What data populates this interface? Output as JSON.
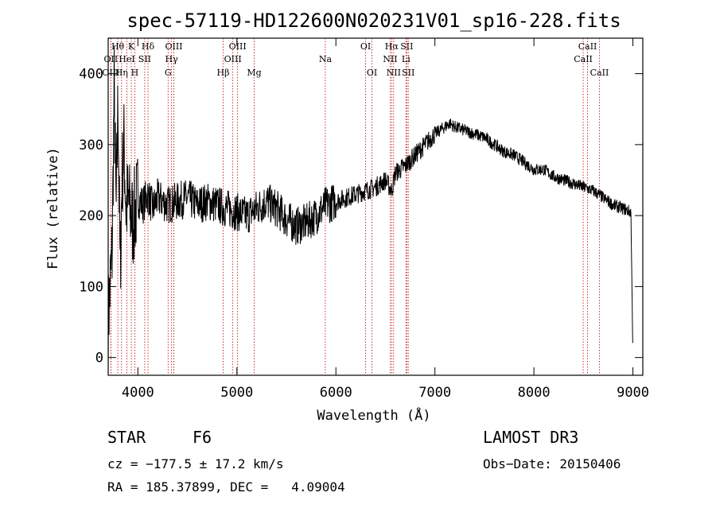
{
  "chart_data": {
    "type": "line",
    "title": "spec-57119-HD122600N020231V01_sp16-228.fits",
    "xlabel": "Wavelength (Å)",
    "ylabel": "Flux (relative)",
    "xlim": [
      3700,
      9100
    ],
    "ylim": [
      -25,
      450
    ],
    "xticks": [
      4000,
      5000,
      6000,
      7000,
      8000,
      9000
    ],
    "yticks": [
      0,
      100,
      200,
      300,
      400
    ],
    "series": [
      {
        "name": "flux",
        "x": [
          3700,
          3740,
          3760,
          3780,
          3800,
          3820,
          3840,
          3860,
          3880,
          3900,
          3950,
          4000,
          4050,
          4100,
          4150,
          4200,
          4300,
          4400,
          4500,
          4600,
          4700,
          4800,
          4900,
          5000,
          5100,
          5200,
          5300,
          5400,
          5500,
          5600,
          5700,
          5800,
          5900,
          6000,
          6100,
          6200,
          6300,
          6400,
          6500,
          6563,
          6600,
          6700,
          6800,
          6900,
          7000,
          7100,
          7150,
          7200,
          7300,
          7400,
          7500,
          7600,
          7700,
          7800,
          7900,
          8000,
          8100,
          8200,
          8300,
          8400,
          8500,
          8600,
          8700,
          8800,
          8900,
          8980,
          9000
        ],
        "y": [
          50,
          150,
          380,
          200,
          370,
          120,
          250,
          300,
          210,
          220,
          190,
          225,
          215,
          230,
          210,
          225,
          215,
          220,
          225,
          215,
          220,
          215,
          210,
          205,
          200,
          210,
          220,
          210,
          195,
          185,
          190,
          200,
          215,
          220,
          225,
          230,
          235,
          240,
          250,
          235,
          260,
          270,
          285,
          300,
          315,
          325,
          330,
          325,
          320,
          315,
          310,
          300,
          290,
          285,
          275,
          265,
          265,
          255,
          250,
          245,
          240,
          235,
          225,
          215,
          210,
          205,
          0
        ]
      }
    ],
    "line_markers": [
      {
        "label": "Hθ",
        "x": 3797,
        "row": 1
      },
      {
        "label": "OII",
        "x": 3727,
        "row": 2
      },
      {
        "label": "OIII",
        "x": 3727,
        "row": 3
      },
      {
        "label": "K",
        "x": 3934,
        "row": 1
      },
      {
        "label": "HeI",
        "x": 3889,
        "row": 2
      },
      {
        "label": "Hη",
        "x": 3835,
        "row": 3
      },
      {
        "label": "Hδ",
        "x": 4102,
        "row": 1
      },
      {
        "label": "SII",
        "x": 4069,
        "row": 2
      },
      {
        "label": "H",
        "x": 3969,
        "row": 3
      },
      {
        "label": "OIII",
        "x": 4363,
        "row": 1
      },
      {
        "label": "Hγ",
        "x": 4340,
        "row": 2
      },
      {
        "label": "G",
        "x": 4305,
        "row": 3
      },
      {
        "label": "OIII",
        "x": 5007,
        "row": 1
      },
      {
        "label": "OIII",
        "x": 4959,
        "row": 2
      },
      {
        "label": "Hβ",
        "x": 4861,
        "row": 3
      },
      {
        "label": "Mg",
        "x": 5175,
        "row": 3
      },
      {
        "label": "Na",
        "x": 5893,
        "row": 2
      },
      {
        "label": "OI",
        "x": 6300,
        "row": 1
      },
      {
        "label": "OI",
        "x": 6364,
        "row": 3
      },
      {
        "label": "Hα",
        "x": 6563,
        "row": 1
      },
      {
        "label": "SII",
        "x": 6716,
        "row": 1
      },
      {
        "label": "NII",
        "x": 6548,
        "row": 2
      },
      {
        "label": "Li",
        "x": 6708,
        "row": 2
      },
      {
        "label": "NII",
        "x": 6583,
        "row": 3
      },
      {
        "label": "SII",
        "x": 6731,
        "row": 3
      },
      {
        "label": "CaII",
        "x": 8542,
        "row": 1
      },
      {
        "label": "CaII",
        "x": 8498,
        "row": 2
      },
      {
        "label": "CaII",
        "x": 8662,
        "row": 3
      }
    ]
  },
  "info": {
    "object_class": "STAR",
    "subclass": "F6",
    "survey": "LAMOST DR3",
    "cz": "cz = −177.5 ± 17.2 km/s",
    "obs_date": "Obs−Date: 20150406",
    "coords": "RA = 185.37899, DEC =   4.09004"
  }
}
